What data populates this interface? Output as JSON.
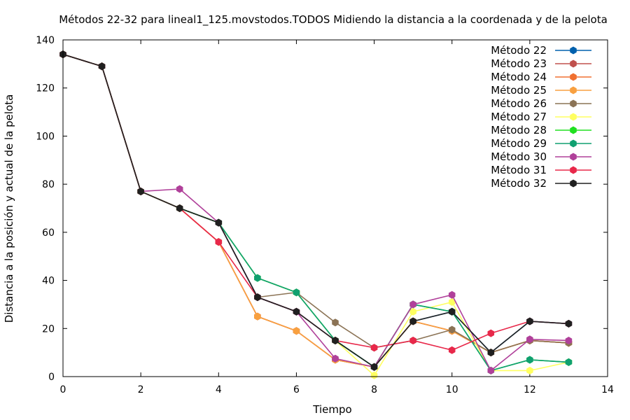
{
  "chart_data": {
    "type": "line",
    "title": "Métodos 22-32 para lineal1_125.movstodos.TODOS Midiendo la distancia a la coordenada y de la pelota",
    "xlabel": "Tiempo",
    "ylabel": "Distancia a la posición y actual de la pelota",
    "xlim": [
      0,
      14
    ],
    "ylim": [
      0,
      140
    ],
    "x_ticks": [
      0,
      2,
      4,
      6,
      8,
      10,
      12,
      14
    ],
    "y_ticks": [
      0,
      20,
      40,
      60,
      80,
      100,
      120,
      140
    ],
    "grid": false,
    "legend_position": "top-right",
    "series": [
      {
        "name": "Método 22",
        "color": "#0060ad",
        "x": [
          0,
          1,
          2,
          3,
          4,
          5,
          6,
          7,
          8,
          9,
          10,
          11,
          12,
          13
        ],
        "y": [
          134,
          129,
          77,
          70,
          64,
          33,
          27,
          15,
          4,
          23,
          27,
          10,
          23,
          22
        ]
      },
      {
        "name": "Método 23",
        "color": "#c0504d",
        "x": [
          0,
          1,
          2,
          3,
          4,
          5,
          6,
          7,
          8,
          9,
          10,
          11,
          12,
          13
        ],
        "y": [
          134,
          129,
          77,
          70,
          56,
          25,
          19,
          7,
          4,
          23,
          19,
          10,
          15,
          14
        ]
      },
      {
        "name": "Método 24",
        "color": "#f07030",
        "x": [
          0,
          1,
          2,
          3,
          4,
          5,
          6,
          7,
          8,
          9,
          10,
          11,
          12,
          13
        ],
        "y": [
          134,
          129,
          77,
          70,
          56,
          25,
          19,
          7,
          4,
          23,
          19,
          10,
          15,
          14
        ]
      },
      {
        "name": "Método 25",
        "color": "#f8a040",
        "x": [
          0,
          1,
          2,
          3,
          4,
          5,
          6,
          7,
          8,
          9,
          10,
          11,
          12,
          13
        ],
        "y": [
          134,
          129,
          77,
          70,
          56,
          25,
          19,
          7,
          4,
          23,
          19,
          10,
          15,
          14
        ]
      },
      {
        "name": "Método 26",
        "color": "#8b7355",
        "x": [
          0,
          1,
          2,
          3,
          4,
          5,
          6,
          7,
          8,
          9,
          10,
          11,
          12,
          13
        ],
        "y": [
          134,
          129,
          77,
          70,
          64,
          33,
          35,
          22.5,
          12,
          15,
          19.5,
          10,
          15,
          14
        ]
      },
      {
        "name": "Método 27",
        "color": "#ffff60",
        "x": [
          0,
          1,
          2,
          3,
          4,
          5,
          6,
          7,
          8,
          9,
          10,
          11,
          12,
          13
        ],
        "y": [
          134,
          129,
          77,
          70,
          64,
          41,
          35,
          15,
          0.5,
          27,
          31,
          2.5,
          2.5,
          6
        ]
      },
      {
        "name": "Método 28",
        "color": "#20e020",
        "x": [
          0,
          1,
          2,
          3,
          4,
          5,
          6,
          7,
          8,
          9,
          10,
          11,
          12,
          13
        ],
        "y": [
          134,
          129,
          77,
          70,
          64,
          41,
          35,
          15,
          4,
          30,
          27,
          2.5,
          7,
          6
        ]
      },
      {
        "name": "Método 29",
        "color": "#10a070",
        "x": [
          0,
          1,
          2,
          3,
          4,
          5,
          6,
          7,
          8,
          9,
          10,
          11,
          12,
          13
        ],
        "y": [
          134,
          129,
          77,
          70,
          64,
          41,
          35,
          15,
          4,
          30,
          27,
          2.5,
          7,
          6
        ]
      },
      {
        "name": "Método 30",
        "color": "#b0409a",
        "x": [
          0,
          1,
          2,
          3,
          4,
          5,
          6,
          7,
          8,
          9,
          10,
          11,
          12,
          13
        ],
        "y": [
          134,
          129,
          77,
          78,
          64,
          33,
          27,
          7.5,
          4,
          30,
          34,
          2.5,
          15.5,
          15
        ]
      },
      {
        "name": "Método 31",
        "color": "#e8284a",
        "x": [
          0,
          1,
          2,
          3,
          4,
          5,
          6,
          7,
          8,
          9,
          10,
          11,
          12,
          13
        ],
        "y": [
          134,
          129,
          77,
          70,
          56,
          33,
          27,
          15,
          12,
          15,
          11,
          18,
          23,
          22
        ]
      },
      {
        "name": "Método 32",
        "color": "#202020",
        "x": [
          0,
          1,
          2,
          3,
          4,
          5,
          6,
          7,
          8,
          9,
          10,
          11,
          12,
          13
        ],
        "y": [
          134,
          129,
          77,
          70,
          64,
          33,
          27,
          15,
          4,
          23,
          27,
          10,
          23,
          22
        ]
      }
    ]
  }
}
